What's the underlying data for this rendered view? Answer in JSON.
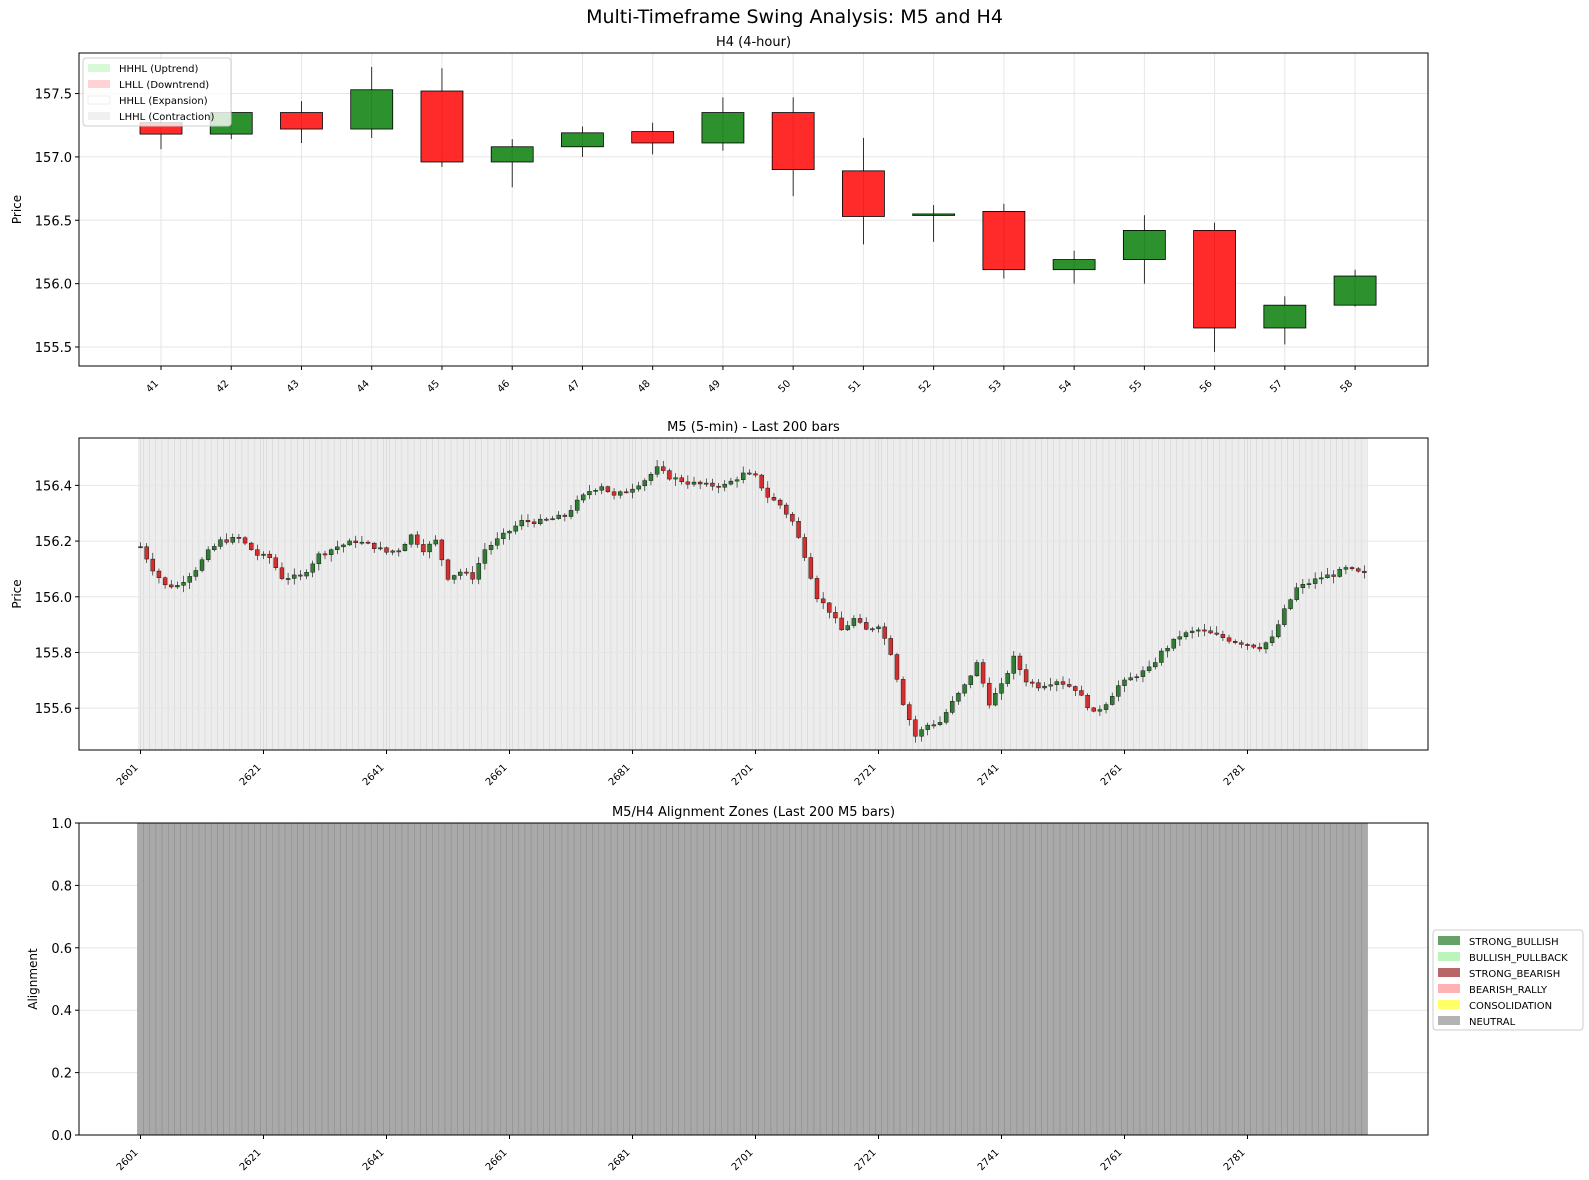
{
  "figure": {
    "title": "Multi-Timeframe Swing Analysis: M5 and H4"
  },
  "h4_legend": {
    "items": [
      {
        "label": "HHHL (Uptrend)",
        "color": "#90ee90",
        "alpha": 0.35
      },
      {
        "label": "LHLL (Downtrend)",
        "color": "#ff8080",
        "alpha": 0.35
      },
      {
        "label": "HHLL (Expansion)",
        "color": "#ffffff",
        "alpha": 0.35
      },
      {
        "label": "LHHL (Contraction)",
        "color": "#d3d3d3",
        "alpha": 0.35
      }
    ]
  },
  "zone_legend": {
    "items": [
      {
        "label": "STRONG_BULLISH",
        "color": "#006400",
        "alpha": 0.6
      },
      {
        "label": "BULLISH_PULLBACK",
        "color": "#90ee90",
        "alpha": 0.6
      },
      {
        "label": "STRONG_BEARISH",
        "color": "#8b0000",
        "alpha": 0.6
      },
      {
        "label": "BEARISH_RALLY",
        "color": "#ff7f7f",
        "alpha": 0.6
      },
      {
        "label": "CONSOLIDATION",
        "color": "#ffff00",
        "alpha": 0.6
      },
      {
        "label": "NEUTRAL",
        "color": "#808080",
        "alpha": 0.6
      }
    ]
  },
  "colors": {
    "bull": "#228b22",
    "bear": "#ff2020",
    "m5_bull": "#2e7d32",
    "m5_bear": "#d32f2f",
    "neutral_zone": "#a9a9a9",
    "grid": "#e6e6e6"
  },
  "chart_data": [
    {
      "type": "candlestick",
      "title": "H4 (4-hour)",
      "ylabel": "Price",
      "xlabel": "",
      "ylim": [
        155.35,
        157.82
      ],
      "yticks": [
        155.5,
        156.0,
        156.5,
        157.0,
        157.5
      ],
      "grid": true,
      "legend_placement": "upper-left",
      "x": [
        41,
        42,
        43,
        44,
        45,
        46,
        47,
        48,
        49,
        50,
        51,
        52,
        53,
        54,
        55,
        56,
        57,
        58
      ],
      "open": [
        157.27,
        157.18,
        157.35,
        157.22,
        157.52,
        156.96,
        157.08,
        157.2,
        157.11,
        157.35,
        156.89,
        156.54,
        156.57,
        156.11,
        156.19,
        156.42,
        155.65,
        155.83
      ],
      "high": [
        157.3,
        157.36,
        157.44,
        157.71,
        157.7,
        157.14,
        157.24,
        157.27,
        157.47,
        157.47,
        157.15,
        156.62,
        156.63,
        156.26,
        156.54,
        156.48,
        155.9,
        156.11
      ],
      "low": [
        157.06,
        157.14,
        157.11,
        157.15,
        156.92,
        156.76,
        157.0,
        157.02,
        157.05,
        156.69,
        156.31,
        156.33,
        156.04,
        156.0,
        156.0,
        155.46,
        155.52,
        155.82
      ],
      "close": [
        157.18,
        157.35,
        157.22,
        157.53,
        156.96,
        157.08,
        157.19,
        157.11,
        157.35,
        156.9,
        156.53,
        156.55,
        156.11,
        156.19,
        156.42,
        155.65,
        155.83,
        156.06
      ]
    },
    {
      "type": "candlestick",
      "title": "M5 (5-min) - Last 200 bars",
      "ylabel": "Price",
      "xlabel": "",
      "ylim": [
        155.45,
        156.57
      ],
      "yticks": [
        155.6,
        155.8,
        156.0,
        156.2,
        156.4
      ],
      "grid": true,
      "x_start": 2601,
      "x_end": 2800,
      "xticks": [
        2601,
        2621,
        2641,
        2661,
        2681,
        2701,
        2721,
        2741,
        2761,
        2781
      ],
      "background_zone": "LHHL (Contraction)",
      "close_anchors": [
        [
          2601,
          156.18
        ],
        [
          2603,
          156.1
        ],
        [
          2605,
          156.04
        ],
        [
          2607,
          156.04
        ],
        [
          2610,
          156.1
        ],
        [
          2612,
          156.16
        ],
        [
          2614,
          156.2
        ],
        [
          2617,
          156.21
        ],
        [
          2620,
          156.15
        ],
        [
          2622,
          156.14
        ],
        [
          2624,
          156.07
        ],
        [
          2627,
          156.07
        ],
        [
          2630,
          156.15
        ],
        [
          2633,
          156.18
        ],
        [
          2636,
          156.2
        ],
        [
          2639,
          156.18
        ],
        [
          2641,
          156.16
        ],
        [
          2643,
          156.17
        ],
        [
          2645,
          156.22
        ],
        [
          2647,
          156.17
        ],
        [
          2649,
          156.2
        ],
        [
          2651,
          156.07
        ],
        [
          2653,
          156.09
        ],
        [
          2655,
          156.07
        ],
        [
          2657,
          156.17
        ],
        [
          2660,
          156.22
        ],
        [
          2663,
          156.27
        ],
        [
          2666,
          156.27
        ],
        [
          2670,
          156.29
        ],
        [
          2672,
          156.34
        ],
        [
          2674,
          156.38
        ],
        [
          2676,
          156.4
        ],
        [
          2678,
          156.36
        ],
        [
          2680,
          156.38
        ],
        [
          2683,
          156.42
        ],
        [
          2685,
          156.46
        ],
        [
          2687,
          156.43
        ],
        [
          2690,
          156.41
        ],
        [
          2693,
          156.4
        ],
        [
          2696,
          156.4
        ],
        [
          2699,
          156.44
        ],
        [
          2701,
          156.43
        ],
        [
          2703,
          156.36
        ],
        [
          2705,
          156.33
        ],
        [
          2707,
          156.27
        ],
        [
          2709,
          156.15
        ],
        [
          2711,
          156.0
        ],
        [
          2713,
          155.95
        ],
        [
          2715,
          155.88
        ],
        [
          2717,
          155.92
        ],
        [
          2719,
          155.88
        ],
        [
          2721,
          155.9
        ],
        [
          2723,
          155.8
        ],
        [
          2725,
          155.62
        ],
        [
          2727,
          155.5
        ],
        [
          2729,
          155.54
        ],
        [
          2731,
          155.55
        ],
        [
          2733,
          155.62
        ],
        [
          2735,
          155.68
        ],
        [
          2737,
          155.76
        ],
        [
          2739,
          155.62
        ],
        [
          2741,
          155.68
        ],
        [
          2743,
          155.78
        ],
        [
          2745,
          155.7
        ],
        [
          2747,
          155.68
        ],
        [
          2750,
          155.7
        ],
        [
          2753,
          155.67
        ],
        [
          2756,
          155.58
        ],
        [
          2758,
          155.62
        ],
        [
          2760,
          155.68
        ],
        [
          2763,
          155.72
        ],
        [
          2765,
          155.74
        ],
        [
          2767,
          155.8
        ],
        [
          2770,
          155.86
        ],
        [
          2773,
          155.88
        ],
        [
          2776,
          155.86
        ],
        [
          2779,
          155.84
        ],
        [
          2781,
          155.83
        ],
        [
          2783,
          155.82
        ],
        [
          2785,
          155.85
        ],
        [
          2787,
          155.95
        ],
        [
          2789,
          156.03
        ],
        [
          2791,
          156.05
        ],
        [
          2793,
          156.07
        ],
        [
          2795,
          156.08
        ],
        [
          2797,
          156.1
        ],
        [
          2800,
          156.08
        ]
      ]
    },
    {
      "type": "bar",
      "title": "M5/H4 Alignment Zones (Last 200 M5 bars)",
      "ylabel": "Alignment",
      "xlabel": "",
      "ylim": [
        0,
        1.0
      ],
      "yticks": [
        0.0,
        0.2,
        0.4,
        0.6,
        0.8,
        1.0
      ],
      "grid": true,
      "legend_placement": "outside-right",
      "x_start": 2601,
      "x_end": 2800,
      "xticks": [
        2601,
        2621,
        2641,
        2661,
        2681,
        2701,
        2721,
        2741,
        2761,
        2781
      ],
      "zone_value": 1.0,
      "zone_category": "NEUTRAL"
    }
  ]
}
